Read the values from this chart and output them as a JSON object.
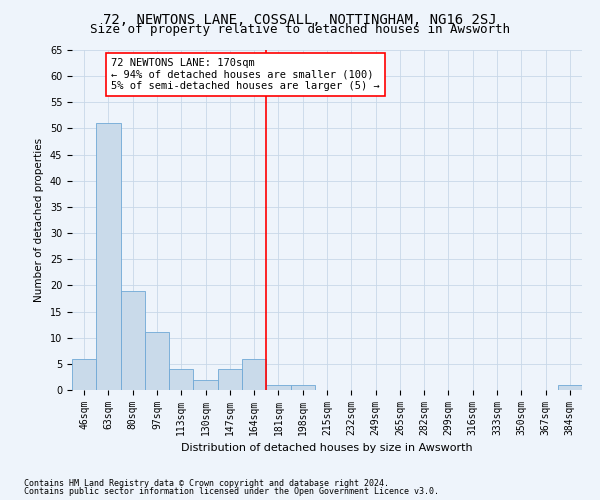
{
  "title": "72, NEWTONS LANE, COSSALL, NOTTINGHAM, NG16 2SJ",
  "subtitle": "Size of property relative to detached houses in Awsworth",
  "xlabel": "Distribution of detached houses by size in Awsworth",
  "ylabel": "Number of detached properties",
  "bar_values": [
    6,
    51,
    19,
    11,
    4,
    2,
    4,
    6,
    1,
    1,
    0,
    0,
    0,
    0,
    0,
    0,
    0,
    0,
    0,
    0,
    1
  ],
  "bar_labels": [
    "46sqm",
    "63sqm",
    "80sqm",
    "97sqm",
    "113sqm",
    "130sqm",
    "147sqm",
    "164sqm",
    "181sqm",
    "198sqm",
    "215sqm",
    "232sqm",
    "249sqm",
    "265sqm",
    "282sqm",
    "299sqm",
    "316sqm",
    "333sqm",
    "350sqm",
    "367sqm",
    "384sqm"
  ],
  "bar_color": "#c9daea",
  "bar_edge_color": "#6fa8d6",
  "grid_color": "#c8d8e8",
  "background_color": "#eef4fb",
  "vline_x": 7.5,
  "vline_color": "red",
  "annotation_text": "72 NEWTONS LANE: 170sqm\n← 94% of detached houses are smaller (100)\n5% of semi-detached houses are larger (5) →",
  "annotation_box_color": "white",
  "annotation_box_edge_color": "red",
  "ylim": [
    0,
    65
  ],
  "yticks": [
    0,
    5,
    10,
    15,
    20,
    25,
    30,
    35,
    40,
    45,
    50,
    55,
    60,
    65
  ],
  "footnote1": "Contains HM Land Registry data © Crown copyright and database right 2024.",
  "footnote2": "Contains public sector information licensed under the Open Government Licence v3.0.",
  "title_fontsize": 10,
  "subtitle_fontsize": 9,
  "label_fontsize": 7.5,
  "tick_fontsize": 7,
  "annotation_fontsize": 7.5,
  "footnote_fontsize": 6
}
